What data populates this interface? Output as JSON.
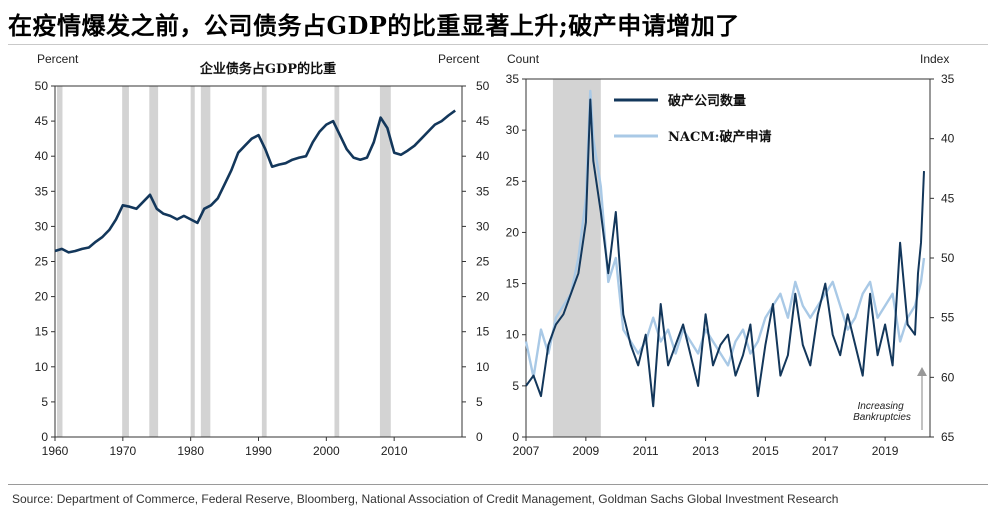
{
  "title": "在疫情爆发之前，公司债务占GDP的比重显著上升;破产申请增加了",
  "source": "Source: Department of Commerce, Federal Reserve, Bloomberg, National Association of Credit Management, Goldman Sachs Global Investment Research",
  "colors": {
    "dark_series": "#13375b",
    "light_series": "#a9c9e6",
    "recession": "#d3d3d3",
    "axis": "#333333"
  },
  "chart_data": [
    {
      "type": "line",
      "title": "企业债务占GDP的比重",
      "ylabel_left": "Percent",
      "ylabel_right": "Percent",
      "xlim": [
        1960,
        2020
      ],
      "ylim": [
        0,
        50
      ],
      "yticks": [
        0,
        5,
        10,
        15,
        20,
        25,
        30,
        35,
        40,
        45,
        50
      ],
      "xticks": [
        1960,
        1970,
        1980,
        1990,
        2000,
        2010
      ],
      "recessions": [
        [
          1960.3,
          1961.1
        ],
        [
          1969.9,
          1970.9
        ],
        [
          1973.9,
          1975.2
        ],
        [
          1980.0,
          1980.6
        ],
        [
          1981.5,
          1982.9
        ],
        [
          1990.5,
          1991.2
        ],
        [
          2001.2,
          2001.9
        ],
        [
          2007.9,
          2009.5
        ]
      ],
      "series": [
        {
          "x": [
            1960,
            1961,
            1962,
            1963,
            1964,
            1965,
            1966,
            1967,
            1968,
            1969,
            1970,
            1971,
            1972,
            1973,
            1974,
            1975,
            1976,
            1977,
            1978,
            1979,
            1980,
            1981,
            1982,
            1983,
            1984,
            1985,
            1986,
            1987,
            1988,
            1989,
            1990,
            1991,
            1992,
            1993,
            1994,
            1995,
            1996,
            1997,
            1998,
            1999,
            2000,
            2001,
            2002,
            2003,
            2004,
            2005,
            2006,
            2007,
            2008,
            2009,
            2010,
            2011,
            2012,
            2013,
            2014,
            2015,
            2016,
            2017,
            2018,
            2019
          ],
          "values": [
            26.5,
            26.8,
            26.3,
            26.5,
            26.8,
            27.0,
            27.8,
            28.5,
            29.5,
            31.0,
            33.0,
            32.8,
            32.5,
            33.5,
            34.5,
            32.5,
            31.8,
            31.5,
            31.0,
            31.5,
            31.0,
            30.5,
            32.5,
            33.0,
            34.0,
            36.0,
            38.0,
            40.5,
            41.5,
            42.5,
            43.0,
            41.0,
            38.5,
            38.8,
            39.0,
            39.5,
            39.8,
            40.0,
            42.0,
            43.5,
            44.5,
            45.0,
            43.0,
            41.0,
            39.8,
            39.5,
            39.8,
            42.0,
            45.5,
            44.0,
            40.5,
            40.2,
            40.8,
            41.5,
            42.5,
            43.5,
            44.5,
            45.0,
            45.8,
            46.5
          ]
        }
      ]
    },
    {
      "type": "line",
      "xlabel": "",
      "ylabel_left": "Count",
      "ylabel_right": "Index",
      "xlim": [
        2007,
        2020.5
      ],
      "ylim": [
        0,
        35
      ],
      "yticks": [
        0,
        5,
        10,
        15,
        20,
        25,
        30,
        35
      ],
      "y2lim": [
        65,
        35
      ],
      "y2ticks": [
        35,
        40,
        45,
        50,
        55,
        60,
        65
      ],
      "xticks": [
        2007,
        2009,
        2011,
        2013,
        2015,
        2017,
        2019
      ],
      "recessions": [
        [
          2007.9,
          2009.5
        ]
      ],
      "annotation": "Increasing Bankruptcies",
      "series": [
        {
          "name": "破产公司数量",
          "axis": "left",
          "x": [
            2007.0,
            2007.25,
            2007.5,
            2007.75,
            2008.0,
            2008.25,
            2008.5,
            2008.75,
            2009.0,
            2009.15,
            2009.25,
            2009.5,
            2009.75,
            2010.0,
            2010.25,
            2010.5,
            2010.75,
            2011.0,
            2011.25,
            2011.5,
            2011.75,
            2012.0,
            2012.25,
            2012.5,
            2012.75,
            2013.0,
            2013.25,
            2013.5,
            2013.75,
            2014.0,
            2014.25,
            2014.5,
            2014.75,
            2015.0,
            2015.25,
            2015.5,
            2015.75,
            2016.0,
            2016.25,
            2016.5,
            2016.75,
            2017.0,
            2017.25,
            2017.5,
            2017.75,
            2018.0,
            2018.25,
            2018.5,
            2018.75,
            2019.0,
            2019.25,
            2019.5,
            2019.75,
            2020.0,
            2020.1,
            2020.2,
            2020.3
          ],
          "values": [
            5,
            6,
            4,
            9,
            11,
            12,
            14,
            16,
            21,
            33,
            27,
            22,
            16,
            22,
            12,
            9,
            7,
            10,
            3,
            13,
            7,
            9,
            11,
            8,
            5,
            12,
            7,
            9,
            10,
            6,
            8,
            11,
            4,
            9,
            13,
            6,
            8,
            14,
            9,
            7,
            12,
            15,
            10,
            8,
            12,
            9,
            6,
            14,
            8,
            11,
            7,
            19,
            11,
            10,
            16,
            19,
            26
          ]
        },
        {
          "name": "NACM:破产申请",
          "axis": "right",
          "x": [
            2007.0,
            2007.25,
            2007.5,
            2007.75,
            2008.0,
            2008.25,
            2008.5,
            2008.75,
            2009.0,
            2009.15,
            2009.25,
            2009.5,
            2009.75,
            2010.0,
            2010.25,
            2010.5,
            2010.75,
            2011.0,
            2011.25,
            2011.5,
            2011.75,
            2012.0,
            2012.25,
            2012.5,
            2012.75,
            2013.0,
            2013.25,
            2013.5,
            2013.75,
            2014.0,
            2014.25,
            2014.5,
            2014.75,
            2015.0,
            2015.25,
            2015.5,
            2015.75,
            2016.0,
            2016.25,
            2016.5,
            2016.75,
            2017.0,
            2017.25,
            2017.5,
            2017.75,
            2018.0,
            2018.25,
            2018.5,
            2018.75,
            2019.0,
            2019.25,
            2019.5,
            2019.75,
            2020.0,
            2020.1,
            2020.2,
            2020.3
          ],
          "values": [
            57,
            60,
            56,
            58,
            55,
            54,
            53,
            50,
            45,
            36,
            40,
            44,
            52,
            50,
            56,
            57,
            58,
            57,
            55,
            57,
            56,
            58,
            56,
            57,
            58,
            56,
            57,
            58,
            59,
            57,
            56,
            58,
            57,
            55,
            54,
            53,
            55,
            52,
            54,
            55,
            54,
            53,
            52,
            54,
            56,
            55,
            53,
            52,
            55,
            54,
            53,
            57,
            55,
            54,
            53,
            52,
            50
          ]
        }
      ]
    }
  ]
}
